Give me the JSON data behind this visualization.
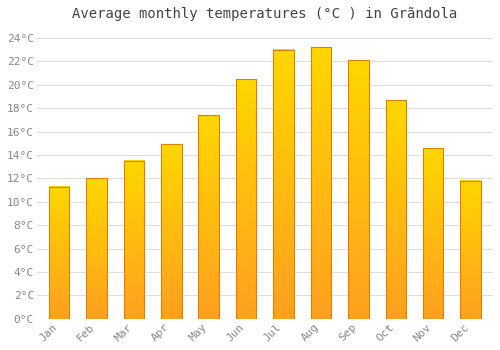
{
  "title": "Average monthly temperatures (°C ) in Grãndola",
  "months": [
    "Jan",
    "Feb",
    "Mar",
    "Apr",
    "May",
    "Jun",
    "Jul",
    "Aug",
    "Sep",
    "Oct",
    "Nov",
    "Dec"
  ],
  "values": [
    11.3,
    12.0,
    13.5,
    14.9,
    17.4,
    20.5,
    23.0,
    23.2,
    22.1,
    18.7,
    14.6,
    11.8
  ],
  "bar_color_top": "#FFD700",
  "bar_color_bottom": "#FFA020",
  "bar_edge_color": "#E08000",
  "background_color": "#FFFFFF",
  "grid_color": "#DDDDDD",
  "ytick_labels": [
    "0°C",
    "2°C",
    "4°C",
    "6°C",
    "8°C",
    "10°C",
    "12°C",
    "14°C",
    "16°C",
    "18°C",
    "20°C",
    "22°C",
    "24°C"
  ],
  "ytick_values": [
    0,
    2,
    4,
    6,
    8,
    10,
    12,
    14,
    16,
    18,
    20,
    22,
    24
  ],
  "ylim": [
    0,
    25
  ],
  "title_fontsize": 10,
  "tick_fontsize": 8,
  "title_color": "#444444",
  "tick_color": "#888888",
  "font_family": "monospace",
  "bar_width": 0.55
}
